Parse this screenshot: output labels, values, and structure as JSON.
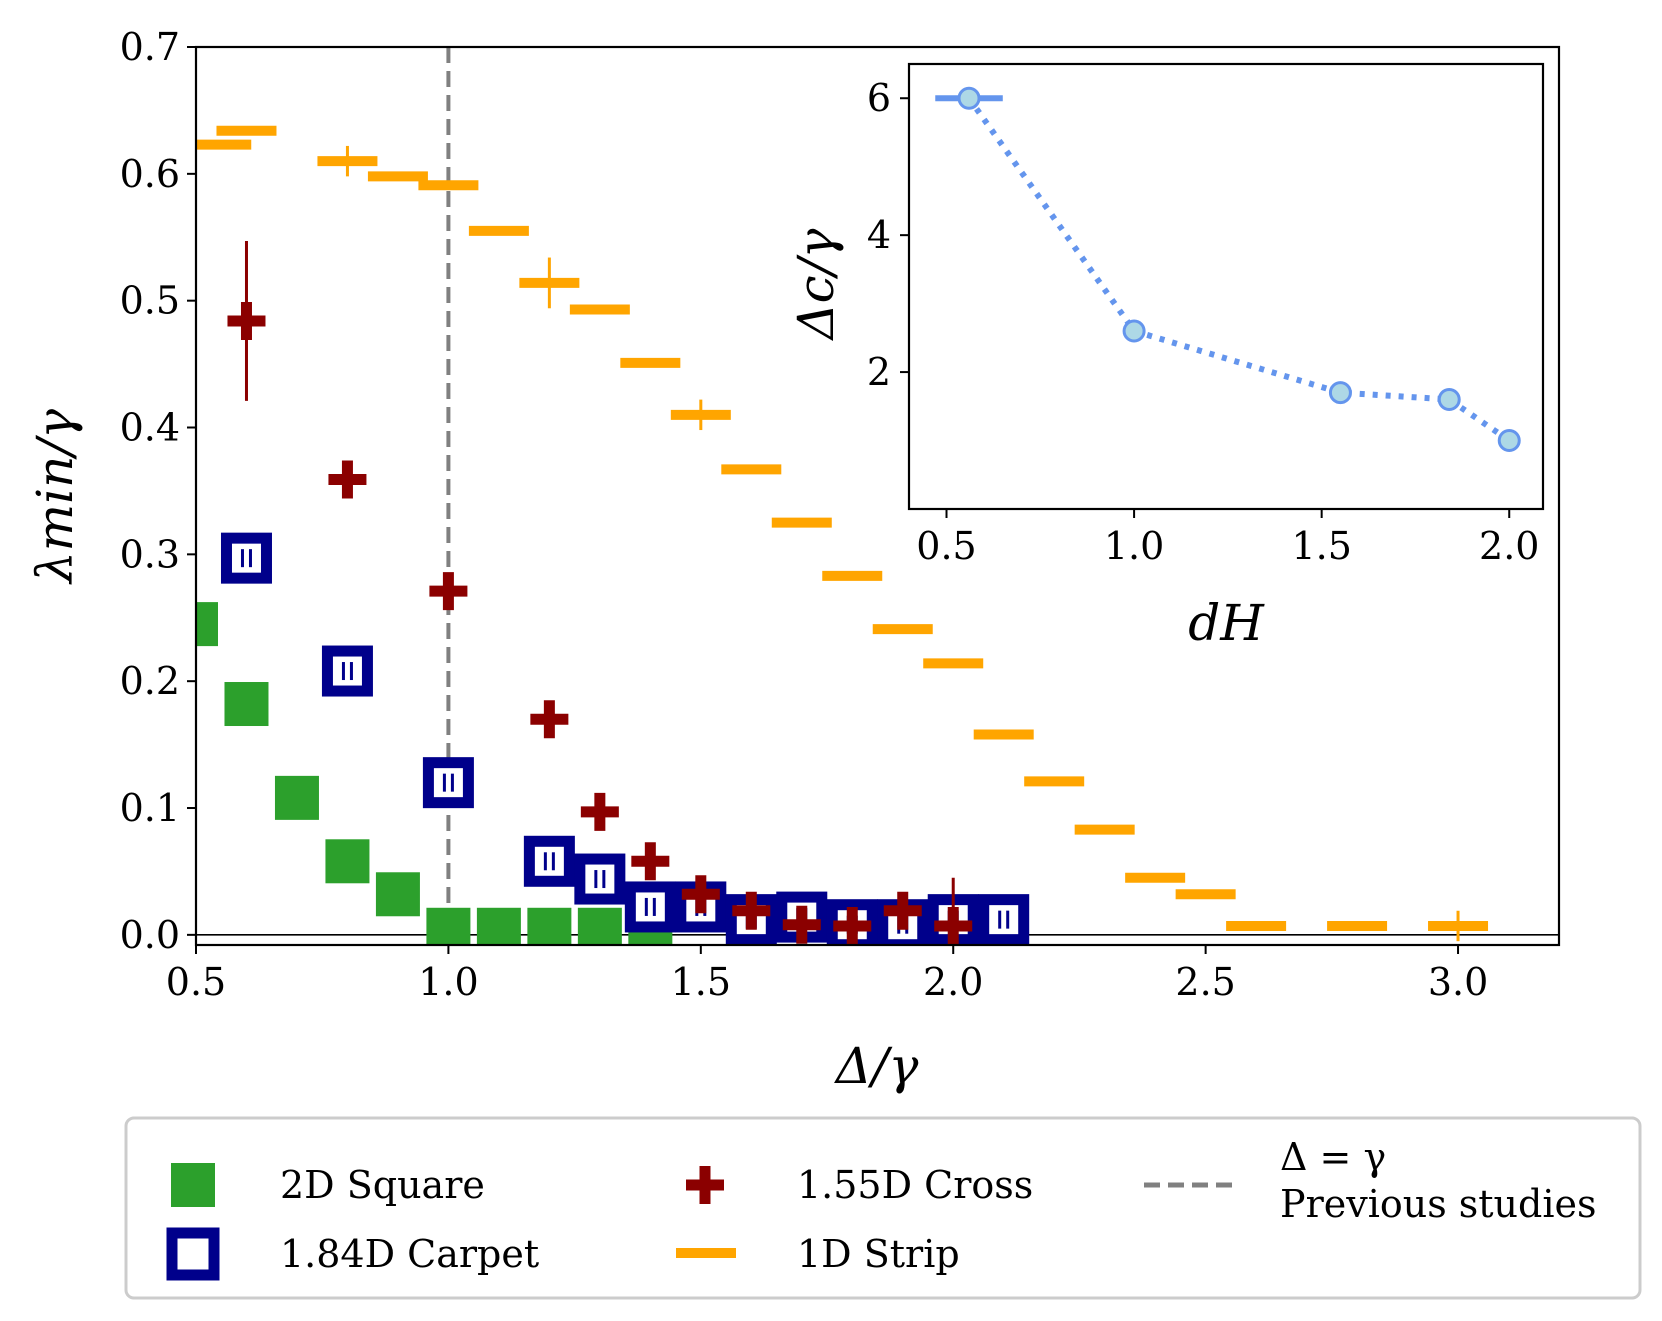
{
  "chart_data": [
    {
      "type": "scatter",
      "title": "",
      "xlabel": "Δ/γ",
      "ylabel": "λmin/γ",
      "xlim": [
        0.5,
        3.2
      ],
      "ylim": [
        -0.008,
        0.7
      ],
      "xticks": [
        "0.5",
        "1.0",
        "1.5",
        "2.0",
        "2.5",
        "3.0"
      ],
      "yticks": [
        "0.0",
        "0.1",
        "0.2",
        "0.3",
        "0.4",
        "0.5",
        "0.6",
        "0.7"
      ],
      "reference_lines": [
        {
          "orientation": "vertical",
          "x": 1.0,
          "style": "dashed",
          "color": "#808080",
          "label": "Δ = γ"
        },
        {
          "orientation": "horizontal",
          "y": 0.0,
          "style": "solid",
          "color": "#000000"
        }
      ],
      "legend_position": "bottom, outside",
      "series": [
        {
          "name": "2D Square",
          "marker": "filled-square",
          "color": "#2ca02c",
          "x": [
            0.5,
            0.6,
            0.7,
            0.8,
            0.9,
            1.0,
            1.1,
            1.2,
            1.3,
            1.4
          ],
          "y": [
            0.245,
            0.182,
            0.108,
            0.058,
            0.032,
            0.004,
            0.004,
            0.004,
            0.004,
            0.004
          ]
        },
        {
          "name": "1.84D Carpet",
          "marker": "open-square",
          "color": "#00008b",
          "x": [
            0.6,
            0.8,
            1.0,
            1.2,
            1.3,
            1.4,
            1.5,
            1.6,
            1.7,
            1.8,
            1.9,
            2.0,
            2.1
          ],
          "y": [
            0.297,
            0.208,
            0.12,
            0.058,
            0.044,
            0.022,
            0.022,
            0.012,
            0.014,
            0.008,
            0.008,
            0.012,
            0.012
          ]
        },
        {
          "name": "1.55D Cross",
          "marker": "plus",
          "color": "#8b0000",
          "x": [
            0.6,
            0.8,
            1.0,
            1.2,
            1.3,
            1.4,
            1.5,
            1.6,
            1.7,
            1.8,
            1.9,
            2.0
          ],
          "y": [
            0.484,
            0.359,
            0.271,
            0.17,
            0.097,
            0.058,
            0.032,
            0.019,
            0.008,
            0.007,
            0.019,
            0.007
          ],
          "y_err": [
            0.063,
            0.004,
            0.004,
            0.004,
            0.004,
            0.004,
            0.004,
            0.004,
            0.004,
            0.004,
            0.004,
            0.038
          ]
        },
        {
          "name": "1D Strip",
          "marker": "hline",
          "color": "#ffa500",
          "x": [
            0.55,
            0.6,
            0.8,
            0.9,
            1.0,
            1.1,
            1.2,
            1.3,
            1.4,
            1.5,
            1.6,
            1.7,
            1.8,
            1.9,
            2.0,
            2.1,
            2.2,
            2.3,
            2.4,
            2.5,
            2.6,
            2.8,
            3.0
          ],
          "y": [
            0.623,
            0.634,
            0.61,
            0.598,
            0.591,
            0.555,
            0.514,
            0.493,
            0.451,
            0.41,
            0.367,
            0.325,
            0.283,
            0.241,
            0.214,
            0.158,
            0.121,
            0.083,
            0.045,
            0.032,
            0.007,
            0.007,
            0.007
          ],
          "y_err": [
            0,
            0,
            0.012,
            0,
            0,
            0,
            0.02,
            0,
            0,
            0.012,
            0,
            0,
            0,
            0,
            0,
            0,
            0,
            0,
            0,
            0,
            0,
            0,
            0.012
          ]
        }
      ],
      "legend": [
        {
          "label": "2D Square",
          "marker": "filled-square",
          "color": "#2ca02c"
        },
        {
          "label": "1.84D Carpet",
          "marker": "open-square",
          "color": "#00008b"
        },
        {
          "label": "1.55D Cross",
          "marker": "plus",
          "color": "#8b0000"
        },
        {
          "label": "1D Strip",
          "marker": "hline",
          "color": "#ffa500"
        },
        {
          "label": "Δ = γ",
          "label2": "Previous studies",
          "marker": "dashed-line",
          "color": "#808080"
        }
      ]
    },
    {
      "type": "line",
      "title": "",
      "placement": "inset, top-right",
      "xlabel": "dH",
      "ylabel": "Δc/γ",
      "xlim": [
        0.4,
        2.09
      ],
      "ylim": [
        0.0,
        6.5
      ],
      "xticks": [
        "0.5",
        "1.0",
        "1.5",
        "2.0"
      ],
      "yticks": [
        "2",
        "4",
        "6"
      ],
      "series": [
        {
          "name": "Δc/γ vs dH",
          "line_style": "dotted",
          "color": "#6495ed",
          "marker_fill": "#add8e6",
          "x": [
            0.56,
            1.0,
            1.55,
            1.84,
            2.0
          ],
          "y": [
            6.0,
            2.6,
            1.7,
            1.6,
            1.0
          ],
          "x_err": [
            0.09,
            0,
            0,
            0,
            0
          ],
          "y_err": [
            0.15,
            0.15,
            0.15,
            0.15,
            0.15
          ]
        }
      ]
    }
  ]
}
